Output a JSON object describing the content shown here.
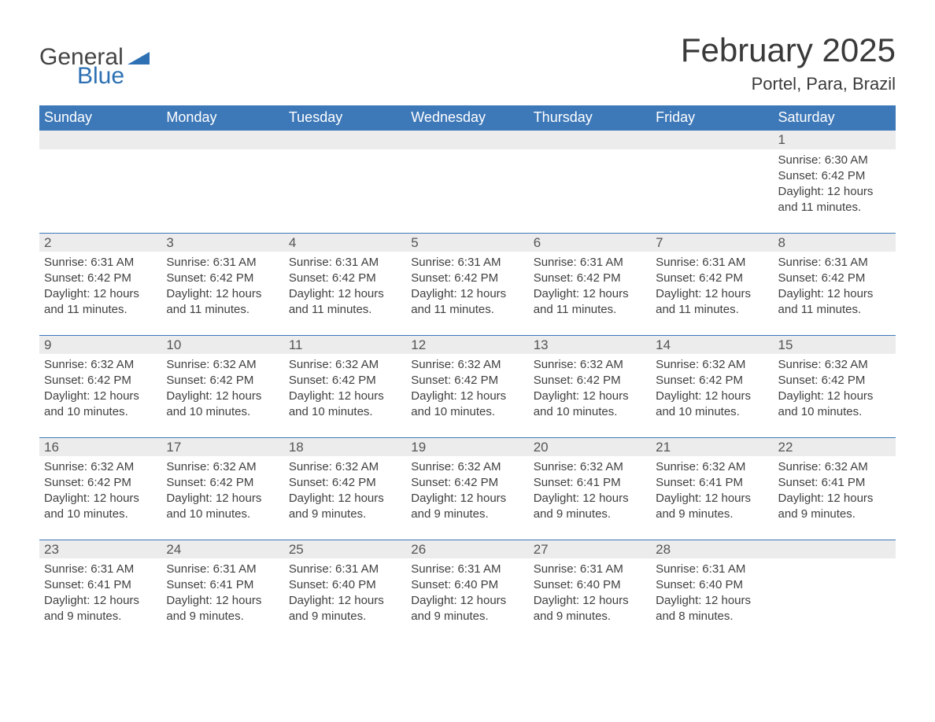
{
  "logo": {
    "word1": "General",
    "word2": "Blue",
    "flag_color": "#2d70b3"
  },
  "title": "February 2025",
  "location": "Portel, Para, Brazil",
  "colors": {
    "header_bg": "#3d78b8",
    "header_text": "#ffffff",
    "daynum_bg": "#ececec",
    "body_text": "#404040",
    "rule": "#3d78b8",
    "page_bg": "#ffffff"
  },
  "weekday_labels": [
    "Sunday",
    "Monday",
    "Tuesday",
    "Wednesday",
    "Thursday",
    "Friday",
    "Saturday"
  ],
  "first_weekday_index": 6,
  "days": [
    {
      "n": 1,
      "sunrise": "6:30 AM",
      "sunset": "6:42 PM",
      "daylight": "12 hours and 11 minutes."
    },
    {
      "n": 2,
      "sunrise": "6:31 AM",
      "sunset": "6:42 PM",
      "daylight": "12 hours and 11 minutes."
    },
    {
      "n": 3,
      "sunrise": "6:31 AM",
      "sunset": "6:42 PM",
      "daylight": "12 hours and 11 minutes."
    },
    {
      "n": 4,
      "sunrise": "6:31 AM",
      "sunset": "6:42 PM",
      "daylight": "12 hours and 11 minutes."
    },
    {
      "n": 5,
      "sunrise": "6:31 AM",
      "sunset": "6:42 PM",
      "daylight": "12 hours and 11 minutes."
    },
    {
      "n": 6,
      "sunrise": "6:31 AM",
      "sunset": "6:42 PM",
      "daylight": "12 hours and 11 minutes."
    },
    {
      "n": 7,
      "sunrise": "6:31 AM",
      "sunset": "6:42 PM",
      "daylight": "12 hours and 11 minutes."
    },
    {
      "n": 8,
      "sunrise": "6:31 AM",
      "sunset": "6:42 PM",
      "daylight": "12 hours and 11 minutes."
    },
    {
      "n": 9,
      "sunrise": "6:32 AM",
      "sunset": "6:42 PM",
      "daylight": "12 hours and 10 minutes."
    },
    {
      "n": 10,
      "sunrise": "6:32 AM",
      "sunset": "6:42 PM",
      "daylight": "12 hours and 10 minutes."
    },
    {
      "n": 11,
      "sunrise": "6:32 AM",
      "sunset": "6:42 PM",
      "daylight": "12 hours and 10 minutes."
    },
    {
      "n": 12,
      "sunrise": "6:32 AM",
      "sunset": "6:42 PM",
      "daylight": "12 hours and 10 minutes."
    },
    {
      "n": 13,
      "sunrise": "6:32 AM",
      "sunset": "6:42 PM",
      "daylight": "12 hours and 10 minutes."
    },
    {
      "n": 14,
      "sunrise": "6:32 AM",
      "sunset": "6:42 PM",
      "daylight": "12 hours and 10 minutes."
    },
    {
      "n": 15,
      "sunrise": "6:32 AM",
      "sunset": "6:42 PM",
      "daylight": "12 hours and 10 minutes."
    },
    {
      "n": 16,
      "sunrise": "6:32 AM",
      "sunset": "6:42 PM",
      "daylight": "12 hours and 10 minutes."
    },
    {
      "n": 17,
      "sunrise": "6:32 AM",
      "sunset": "6:42 PM",
      "daylight": "12 hours and 10 minutes."
    },
    {
      "n": 18,
      "sunrise": "6:32 AM",
      "sunset": "6:42 PM",
      "daylight": "12 hours and 9 minutes."
    },
    {
      "n": 19,
      "sunrise": "6:32 AM",
      "sunset": "6:42 PM",
      "daylight": "12 hours and 9 minutes."
    },
    {
      "n": 20,
      "sunrise": "6:32 AM",
      "sunset": "6:41 PM",
      "daylight": "12 hours and 9 minutes."
    },
    {
      "n": 21,
      "sunrise": "6:32 AM",
      "sunset": "6:41 PM",
      "daylight": "12 hours and 9 minutes."
    },
    {
      "n": 22,
      "sunrise": "6:32 AM",
      "sunset": "6:41 PM",
      "daylight": "12 hours and 9 minutes."
    },
    {
      "n": 23,
      "sunrise": "6:31 AM",
      "sunset": "6:41 PM",
      "daylight": "12 hours and 9 minutes."
    },
    {
      "n": 24,
      "sunrise": "6:31 AM",
      "sunset": "6:41 PM",
      "daylight": "12 hours and 9 minutes."
    },
    {
      "n": 25,
      "sunrise": "6:31 AM",
      "sunset": "6:40 PM",
      "daylight": "12 hours and 9 minutes."
    },
    {
      "n": 26,
      "sunrise": "6:31 AM",
      "sunset": "6:40 PM",
      "daylight": "12 hours and 9 minutes."
    },
    {
      "n": 27,
      "sunrise": "6:31 AM",
      "sunset": "6:40 PM",
      "daylight": "12 hours and 9 minutes."
    },
    {
      "n": 28,
      "sunrise": "6:31 AM",
      "sunset": "6:40 PM",
      "daylight": "12 hours and 8 minutes."
    }
  ],
  "labels": {
    "sunrise": "Sunrise:",
    "sunset": "Sunset:",
    "daylight": "Daylight:"
  }
}
